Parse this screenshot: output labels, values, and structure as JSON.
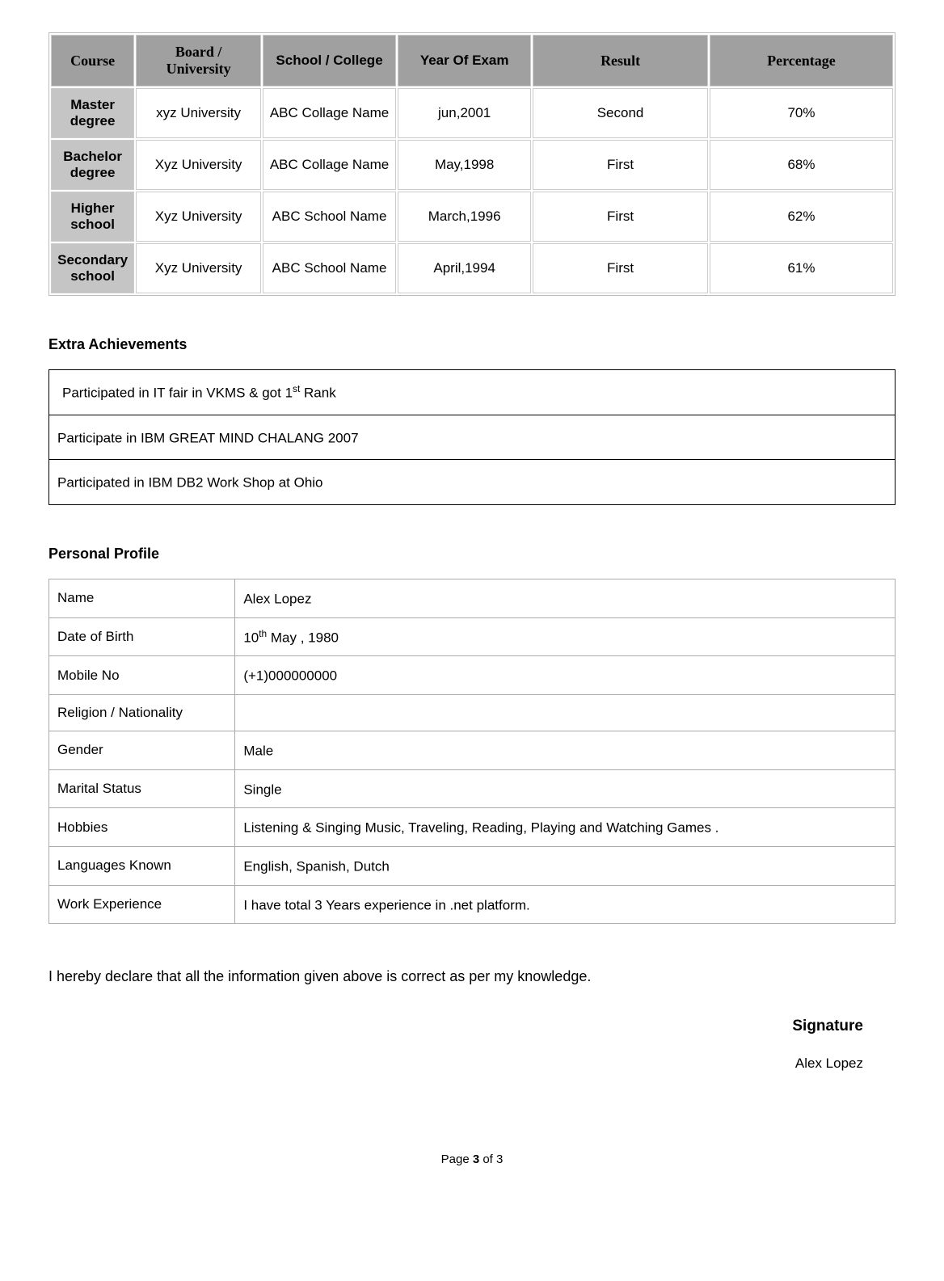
{
  "education": {
    "headers": {
      "course": "Course",
      "board": "Board / University",
      "school": "School / College",
      "year": "Year Of Exam",
      "result": "Result",
      "percentage": "Percentage"
    },
    "rows": [
      {
        "course": "Master degree",
        "board": "xyz University",
        "school": "ABC Collage Name",
        "year": "jun,2001",
        "result": "Second",
        "percentage": "70%"
      },
      {
        "course": "Bachelor degree",
        "board": "Xyz University",
        "school": "ABC Collage Name",
        "year": "May,1998",
        "result": "First",
        "percentage": "68%"
      },
      {
        "course": "Higher school",
        "board": "Xyz University",
        "school": "ABC School Name",
        "year": "March,1996",
        "result": "First",
        "percentage": "62%"
      },
      {
        "course": "Secondary school",
        "board": "Xyz University",
        "school": "ABC School Name",
        "year": "April,1994",
        "result": "First",
        "percentage": "61%"
      }
    ]
  },
  "achievements": {
    "heading": "Extra Achievements",
    "items": [
      {
        "pre": "Participated in IT fair in VKMS & got 1",
        "sup": "st",
        "post": " Rank"
      },
      {
        "pre": "Participate in IBM GREAT MIND CHALANG 2007",
        "sup": "",
        "post": ""
      },
      {
        "pre": "Participated in IBM DB2 Work Shop at Ohio",
        "sup": "",
        "post": ""
      }
    ]
  },
  "profile": {
    "heading": "Personal Profile",
    "rows": [
      {
        "label": "Name",
        "value_pre": "Alex Lopez",
        "sup": "",
        "value_post": ""
      },
      {
        "label": "Date of Birth",
        "value_pre": "10",
        "sup": "th",
        "value_post": "  May , 1980"
      },
      {
        "label": "Mobile No",
        "value_pre": "(+1)000000000",
        "sup": "",
        "value_post": ""
      },
      {
        "label": "Religion / Nationality",
        "value_pre": "",
        "sup": "",
        "value_post": ""
      },
      {
        "label": "Gender",
        "value_pre": "Male",
        "sup": "",
        "value_post": ""
      },
      {
        "label": "Marital Status",
        "value_pre": "Single",
        "sup": "",
        "value_post": ""
      },
      {
        "label": "Hobbies",
        "value_pre": "Listening & Singing Music, Traveling, Reading, Playing and Watching Games .",
        "sup": "",
        "value_post": ""
      },
      {
        "label": "Languages Known",
        "value_pre": "English, Spanish, Dutch",
        "sup": "",
        "value_post": ""
      },
      {
        "label": "Work Experience",
        "value_pre": "I have total 3 Years experience in .net platform.",
        "sup": "",
        "value_post": ""
      }
    ]
  },
  "declaration": "I hereby declare that all the information given above is correct as per my knowledge.",
  "signature": {
    "label": "Signature",
    "name": "Alex Lopez"
  },
  "footer": {
    "pre": "Page ",
    "bold": "3",
    "post": " of 3"
  },
  "style": {
    "header_bg": "#a0a0a0",
    "course_bg": "#c5c5c5",
    "border_color": "#cccccc",
    "achieve_border": "#000000",
    "profile_border": "#aaaaaa",
    "body_bg": "#ffffff",
    "text_color": "#000000",
    "body_font_size": 17,
    "heading_font_size": 18,
    "signature_font_size": 19
  }
}
